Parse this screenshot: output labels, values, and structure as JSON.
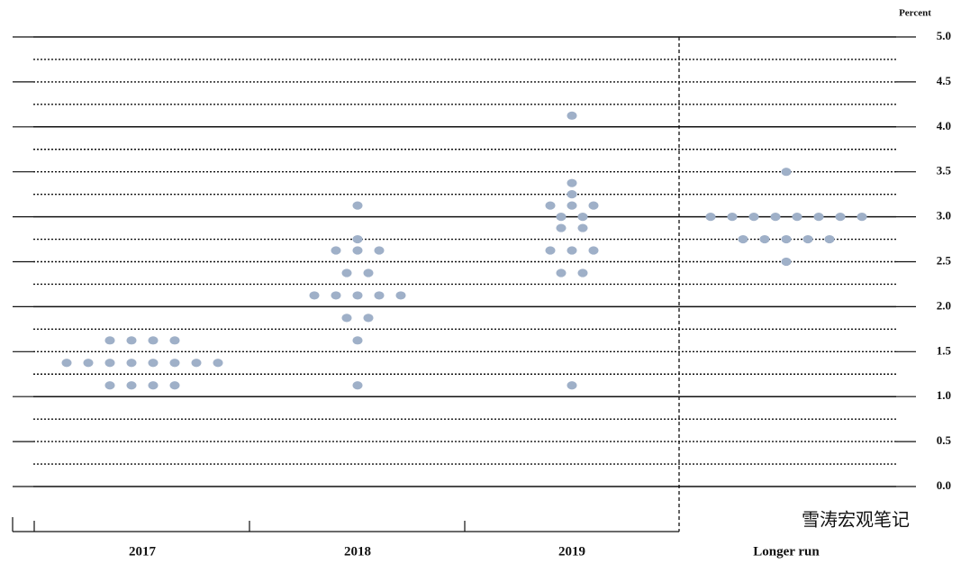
{
  "chart_data": {
    "type": "dot",
    "y_label": "Percent",
    "categories": [
      "2017",
      "2018",
      "2019",
      "Longer run"
    ],
    "values": [
      [
        1.625,
        1.625,
        1.625,
        1.625,
        1.375,
        1.375,
        1.375,
        1.375,
        1.375,
        1.375,
        1.375,
        1.375,
        1.125,
        1.125,
        1.125,
        1.125
      ],
      [
        3.125,
        2.75,
        2.625,
        2.625,
        2.625,
        2.375,
        2.375,
        2.125,
        2.125,
        2.125,
        2.125,
        2.125,
        1.875,
        1.875,
        1.625,
        1.125
      ],
      [
        4.125,
        3.375,
        3.25,
        3.125,
        3.125,
        3.125,
        3.0,
        3.0,
        2.875,
        2.875,
        2.625,
        2.625,
        2.625,
        2.375,
        2.375,
        1.125
      ],
      [
        3.5,
        3.0,
        3.0,
        3.0,
        3.0,
        3.0,
        3.0,
        3.0,
        3.0,
        2.75,
        2.75,
        2.75,
        2.75,
        2.75,
        2.5
      ]
    ],
    "color": "#9fb0c8",
    "ylim": [
      0,
      5
    ],
    "yticks": [
      {
        "value": 0,
        "label": "0.0"
      },
      0.5,
      {
        "value": 1,
        "label": "1.0"
      },
      1.5,
      {
        "value": 2,
        "label": "2.0"
      },
      2.5,
      {
        "value": 3,
        "label": "3.0"
      },
      3.5,
      {
        "value": 4,
        "label": "4.0"
      },
      4.5,
      {
        "value": 5,
        "label": "5.0"
      }
    ],
    "grid_lines": [
      0,
      0.25,
      0.5,
      0.75,
      1,
      1.25,
      1.5,
      1.75,
      2,
      2.25,
      2.5,
      2.75,
      3,
      3.25,
      3.5,
      3.75,
      4,
      4.25,
      4.5,
      4.75,
      5
    ],
    "watermark": "雪涛宏观笔记"
  }
}
